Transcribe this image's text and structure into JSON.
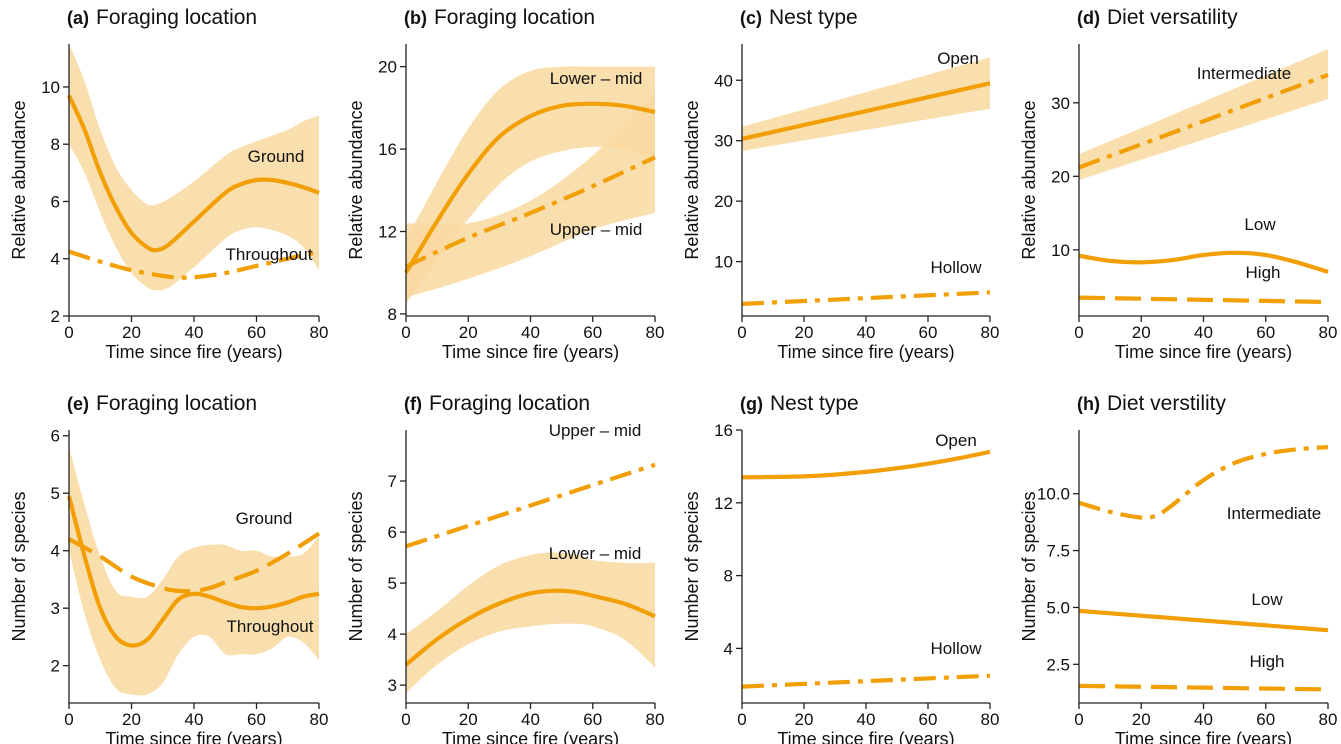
{
  "colors": {
    "line": "#F29F05",
    "band": "#F9D9A0"
  },
  "chart_data": [
    {
      "type": "line",
      "panel": "(a)",
      "title": "Foraging location",
      "xlabel": "Time since fire (years)",
      "ylabel": "Relative abundance",
      "xlim": [
        0,
        80
      ],
      "ylim": [
        2,
        11.5
      ],
      "xticks": [
        "0",
        "20",
        "40",
        "60",
        "80"
      ],
      "yticks": [
        "2",
        "4",
        "6",
        "8",
        "10"
      ],
      "series": [
        {
          "name": "Ground",
          "style": "solid",
          "x": [
            0,
            5,
            10,
            15,
            20,
            25,
            28,
            32,
            40,
            50,
            55,
            60,
            65,
            70,
            75,
            80
          ],
          "y": [
            9.7,
            8.5,
            7.0,
            5.8,
            4.9,
            4.4,
            4.3,
            4.5,
            5.3,
            6.3,
            6.6,
            6.75,
            6.75,
            6.65,
            6.5,
            6.3
          ],
          "lower": [
            8.0,
            7.0,
            5.6,
            4.4,
            3.5,
            3.0,
            2.9,
            3.0,
            3.7,
            4.7,
            5.0,
            5.1,
            5.0,
            4.8,
            4.4,
            3.6
          ],
          "upper": [
            11.5,
            10.2,
            8.5,
            7.2,
            6.4,
            5.9,
            5.9,
            6.1,
            6.7,
            7.6,
            7.9,
            8.1,
            8.3,
            8.5,
            8.8,
            9.0
          ]
        },
        {
          "name": "Throughout",
          "style": "dashdot",
          "x": [
            0,
            10,
            20,
            30,
            35,
            40,
            50,
            60,
            70,
            80
          ],
          "y": [
            4.25,
            3.9,
            3.6,
            3.4,
            3.35,
            3.35,
            3.5,
            3.75,
            4.0,
            4.25
          ]
        }
      ]
    },
    {
      "type": "line",
      "panel": "(b)",
      "title": "Foraging location",
      "xlabel": "Time since fire (years)",
      "ylabel": "Relative abundance",
      "xlim": [
        0,
        80
      ],
      "ylim": [
        7.9,
        21.1
      ],
      "xticks": [
        "0",
        "20",
        "40",
        "60",
        "80"
      ],
      "yticks": [
        "8",
        "12",
        "16",
        "20"
      ],
      "series": [
        {
          "name": "Lower – mid",
          "style": "solid",
          "x": [
            0,
            10,
            20,
            30,
            40,
            50,
            60,
            70,
            80
          ],
          "y": [
            10.0,
            12.5,
            14.8,
            16.6,
            17.6,
            18.1,
            18.2,
            18.1,
            17.8
          ],
          "lower": [
            8.5,
            10.6,
            12.6,
            14.3,
            15.4,
            15.9,
            16.1,
            16.0,
            15.5
          ],
          "upper": [
            11.6,
            14.4,
            17.0,
            18.9,
            19.8,
            20.0,
            20.0,
            20.0,
            20.0
          ]
        },
        {
          "name": "Upper – mid",
          "style": "dashdot",
          "x": [
            0,
            20,
            40,
            60,
            80
          ],
          "y": [
            10.3,
            11.7,
            12.9,
            14.2,
            15.6
          ],
          "lower": [
            8.8,
            9.7,
            10.8,
            12.1,
            12.9
          ],
          "upper": [
            12.4,
            12.4,
            13.5,
            15.7,
            18.8
          ]
        }
      ]
    },
    {
      "type": "line",
      "panel": "(c)",
      "title": "Nest type",
      "xlabel": "Time since fire (years)",
      "ylabel": "Relative abundance",
      "xlim": [
        0,
        80
      ],
      "ylim": [
        1,
        46
      ],
      "xticks": [
        "0",
        "20",
        "40",
        "60",
        "80"
      ],
      "yticks": [
        "10",
        "20",
        "30",
        "40"
      ],
      "series": [
        {
          "name": "Open",
          "style": "solid",
          "x": [
            0,
            80
          ],
          "y": [
            30.3,
            39.5
          ],
          "lower": [
            28.3,
            35.3
          ],
          "upper": [
            32.3,
            43.8
          ]
        },
        {
          "name": "Hollow",
          "style": "dashdot",
          "x": [
            0,
            80
          ],
          "y": [
            3.0,
            4.9
          ]
        }
      ]
    },
    {
      "type": "line",
      "panel": "(d)",
      "title": "Diet versatility",
      "xlabel": "Time since fire (years)",
      "ylabel": "Relative abundance",
      "xlim": [
        0,
        80
      ],
      "ylim": [
        1,
        38
      ],
      "xticks": [
        "0",
        "20",
        "40",
        "60",
        "80"
      ],
      "yticks": [
        "10",
        "20",
        "30"
      ],
      "series": [
        {
          "name": "Intermediate",
          "style": "dashdot",
          "x": [
            0,
            80
          ],
          "y": [
            21.2,
            33.8
          ],
          "lower": [
            19.5,
            30.5
          ],
          "upper": [
            23.0,
            37.3
          ]
        },
        {
          "name": "Low",
          "style": "solid",
          "x": [
            0,
            10,
            20,
            30,
            40,
            50,
            60,
            70,
            80
          ],
          "y": [
            9.2,
            8.5,
            8.3,
            8.6,
            9.3,
            9.6,
            9.3,
            8.3,
            7.0
          ]
        },
        {
          "name": "High",
          "style": "dashed",
          "x": [
            0,
            80
          ],
          "y": [
            3.5,
            2.9
          ]
        }
      ]
    },
    {
      "type": "line",
      "panel": "(e)",
      "title": "Foraging location",
      "xlabel": "Time since fire (years)",
      "ylabel": "Number of species",
      "xlim": [
        0,
        80
      ],
      "ylim": [
        1.35,
        6.1
      ],
      "xticks": [
        "0",
        "20",
        "40",
        "60",
        "80"
      ],
      "yticks": [
        "2",
        "3",
        "4",
        "5",
        "6"
      ],
      "series": [
        {
          "name": "Ground",
          "style": "solid",
          "x": [
            0,
            5,
            10,
            15,
            20,
            25,
            30,
            35,
            40,
            45,
            50,
            55,
            60,
            65,
            70,
            75,
            80
          ],
          "y": [
            4.95,
            3.9,
            3.0,
            2.5,
            2.35,
            2.45,
            2.8,
            3.15,
            3.25,
            3.2,
            3.1,
            3.02,
            3.0,
            3.03,
            3.1,
            3.2,
            3.25
          ],
          "lower": [
            4.0,
            2.9,
            2.1,
            1.6,
            1.5,
            1.5,
            1.7,
            2.2,
            2.5,
            2.5,
            2.2,
            2.2,
            2.2,
            2.3,
            2.5,
            2.4,
            2.1
          ],
          "upper": [
            5.8,
            4.8,
            3.9,
            3.3,
            3.2,
            3.2,
            3.5,
            3.9,
            4.05,
            4.1,
            4.1,
            4.0,
            4.0,
            3.9,
            3.9,
            3.95,
            4.25
          ]
        },
        {
          "name": "Throughout",
          "style": "dashed",
          "x": [
            0,
            10,
            20,
            30,
            35,
            40,
            45,
            50,
            60,
            70,
            80
          ],
          "y": [
            4.2,
            3.9,
            3.55,
            3.35,
            3.3,
            3.3,
            3.35,
            3.45,
            3.65,
            3.95,
            4.3
          ]
        }
      ]
    },
    {
      "type": "line",
      "panel": "(f)",
      "title": "Foraging location",
      "xlabel": "Time since fire (years)",
      "ylabel": "Number of species",
      "xlim": [
        0,
        80
      ],
      "ylim": [
        2.65,
        8.0
      ],
      "xticks": [
        "0",
        "20",
        "40",
        "60",
        "80"
      ],
      "yticks": [
        "3",
        "4",
        "5",
        "6",
        "7"
      ],
      "series": [
        {
          "name": "Upper – mid",
          "style": "dashdot",
          "x": [
            0,
            80
          ],
          "y": [
            5.72,
            7.32
          ]
        },
        {
          "name": "Lower – mid",
          "style": "solid",
          "x": [
            0,
            10,
            20,
            30,
            40,
            48,
            55,
            60,
            70,
            80
          ],
          "y": [
            3.4,
            3.9,
            4.3,
            4.6,
            4.8,
            4.85,
            4.82,
            4.75,
            4.6,
            4.35
          ],
          "lower": [
            2.85,
            3.4,
            3.8,
            4.05,
            4.15,
            4.2,
            4.2,
            4.15,
            3.9,
            3.35
          ],
          "upper": [
            4.0,
            4.45,
            4.95,
            5.35,
            5.55,
            5.6,
            5.55,
            5.45,
            5.4,
            5.4
          ]
        }
      ]
    },
    {
      "type": "line",
      "panel": "(g)",
      "title": "Nest type",
      "xlabel": "Time since fire (years)",
      "ylabel": "Number of species",
      "xlim": [
        0,
        80
      ],
      "ylim": [
        1.0,
        16.0
      ],
      "xticks": [
        "0",
        "20",
        "40",
        "60",
        "80"
      ],
      "yticks": [
        "4",
        "8",
        "12",
        "16"
      ],
      "series": [
        {
          "name": "Open",
          "style": "solid",
          "x": [
            0,
            20,
            30,
            40,
            50,
            60,
            70,
            80
          ],
          "y": [
            13.4,
            13.45,
            13.55,
            13.7,
            13.9,
            14.15,
            14.45,
            14.8
          ]
        },
        {
          "name": "Hollow",
          "style": "dashdot",
          "x": [
            0,
            80
          ],
          "y": [
            1.9,
            2.5
          ]
        }
      ]
    },
    {
      "type": "line",
      "panel": "(h)",
      "title": "Diet verstility",
      "xlabel": "Time since fire (years)",
      "ylabel": "Number of species",
      "xlim": [
        0,
        80
      ],
      "ylim": [
        0.8,
        12.8
      ],
      "xticks": [
        "0",
        "20",
        "40",
        "60",
        "80"
      ],
      "yticks": [
        "2.5",
        "5.0",
        "7.5",
        "10.0"
      ],
      "series": [
        {
          "name": "Intermediate",
          "style": "dashdot",
          "x": [
            0,
            10,
            20,
            25,
            30,
            40,
            50,
            60,
            70,
            80
          ],
          "y": [
            9.6,
            9.2,
            8.95,
            9.05,
            9.5,
            10.6,
            11.35,
            11.75,
            11.95,
            12.05
          ]
        },
        {
          "name": "Low",
          "style": "solid",
          "x": [
            0,
            80
          ],
          "y": [
            4.85,
            4.0
          ]
        },
        {
          "name": "High",
          "style": "dashed",
          "x": [
            0,
            80
          ],
          "y": [
            1.55,
            1.4
          ]
        }
      ]
    }
  ]
}
